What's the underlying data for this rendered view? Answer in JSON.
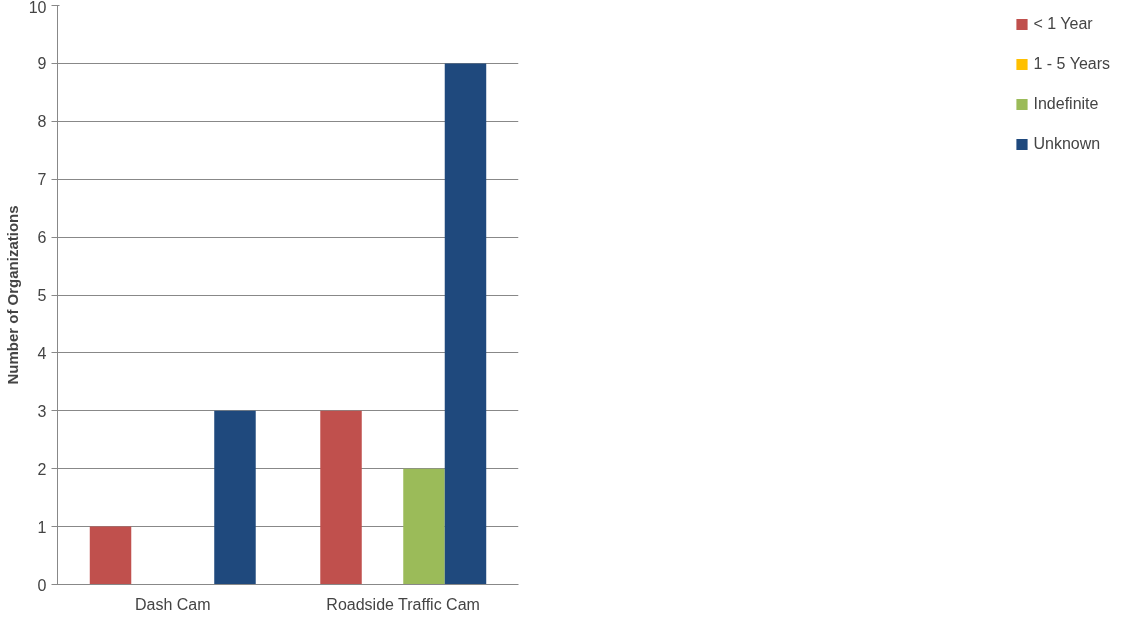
{
  "chart_data": {
    "type": "bar",
    "ylabel": "Number of Organizations",
    "categories": [
      "Dash Cam",
      "Roadside Traffic Cam"
    ],
    "series": [
      {
        "name": "< 1 Year",
        "color": "#c0504d",
        "values": [
          1,
          3
        ]
      },
      {
        "name": "1 - 5 Years",
        "color": "#ffc000",
        "values": [
          0,
          0
        ]
      },
      {
        "name": "Indefinite",
        "color": "#9bbb59",
        "values": [
          0,
          2
        ]
      },
      {
        "name": "Unknown",
        "color": "#1f497d",
        "values": [
          3,
          9
        ]
      }
    ],
    "ylim": [
      0,
      10
    ],
    "yticks": [
      0,
      1,
      2,
      3,
      4,
      5,
      6,
      7,
      8,
      9,
      10
    ],
    "grid": "y",
    "legend": "right"
  }
}
